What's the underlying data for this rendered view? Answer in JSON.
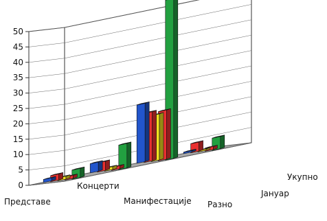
{
  "chart_data": {
    "type": "bar",
    "title": "",
    "xlabel": "",
    "ylabel": "",
    "ylim": [
      0,
      50
    ],
    "yticks": [
      0,
      5,
      10,
      15,
      20,
      25,
      30,
      35,
      40,
      45,
      50
    ],
    "grid": false,
    "legend": "none",
    "categories": [
      "Представе",
      "Концерти",
      "Манифестације",
      "Разно"
    ],
    "series": [
      {
        "name": "",
        "color": "#2255cc",
        "values": [
          1,
          3,
          19,
          0.5
        ]
      },
      {
        "name": "",
        "color": "#e83030",
        "values": [
          2,
          3,
          16,
          3
        ]
      },
      {
        "name": "",
        "color": "#f0e020",
        "values": [
          1,
          1,
          15,
          0.5
        ]
      },
      {
        "name": "Јануар",
        "color": "#e83030",
        "values": [
          1,
          1,
          16,
          1
        ]
      },
      {
        "name": "Укупно",
        "color": "#22a040",
        "values": [
          3,
          8,
          52,
          4
        ]
      }
    ],
    "depth_labels": [
      "Јануар",
      "Укупно"
    ]
  }
}
